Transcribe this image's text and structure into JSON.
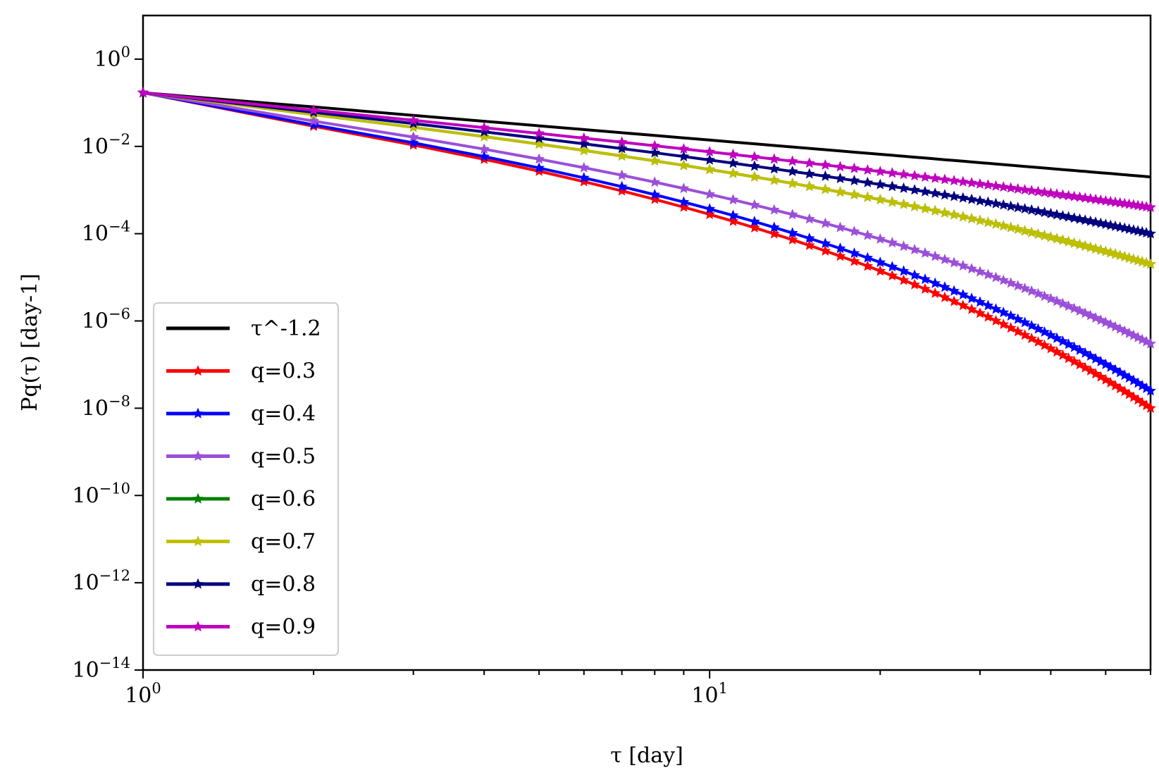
{
  "chart_data": {
    "type": "line",
    "title": "",
    "xlabel": "τ [day]",
    "ylabel": "Pq(τ) [day-1]",
    "xscale": "log",
    "yscale": "log",
    "xlim": [
      1,
      60
    ],
    "ylim": [
      1e-14,
      10
    ],
    "x_ticks": [
      {
        "value": 1,
        "base": "10",
        "exp": "0"
      },
      {
        "value": 10,
        "base": "10",
        "exp": "1"
      }
    ],
    "y_ticks": [
      {
        "value": 1,
        "base": "10",
        "exp": "0"
      },
      {
        "value": 0.01,
        "base": "10",
        "exp": "−2"
      },
      {
        "value": 0.0001,
        "base": "10",
        "exp": "−4"
      },
      {
        "value": 1e-06,
        "base": "10",
        "exp": "−6"
      },
      {
        "value": 1e-08,
        "base": "10",
        "exp": "−8"
      },
      {
        "value": 1e-10,
        "base": "10",
        "exp": "−10"
      },
      {
        "value": 1e-12,
        "base": "10",
        "exp": "−12"
      },
      {
        "value": 1e-14,
        "base": "10",
        "exp": "−14"
      }
    ],
    "x": [
      1,
      2,
      3,
      4,
      5,
      6,
      7,
      8,
      9,
      10,
      11,
      12,
      13,
      14,
      15,
      16,
      17,
      18,
      19,
      20,
      21,
      22,
      23,
      24,
      25,
      26,
      27,
      28,
      29,
      30,
      31,
      32,
      33,
      34,
      35,
      36,
      37,
      38,
      39,
      40,
      41,
      42,
      43,
      44,
      45,
      46,
      47,
      48,
      49,
      50,
      51,
      52,
      53,
      54,
      55,
      56,
      57,
      58,
      59,
      60
    ],
    "legend_position": "lower-left",
    "series": [
      {
        "name": "τ^-1.2",
        "color": "#000000",
        "marker": false,
        "tail_exponent": 0,
        "values_at_end": 0.002
      },
      {
        "name": "q=0.3",
        "color": "#ff0000",
        "marker": true,
        "tail_exponent": 2.1,
        "value_at_end": 1e-08
      },
      {
        "name": "q=0.4",
        "color": "#0000ff",
        "marker": true,
        "tail_exponent": 2.1,
        "value_at_end": 2.5e-08
      },
      {
        "name": "q=0.5",
        "color": "#9b4fd9",
        "marker": true,
        "tail_exponent": 2.1,
        "value_at_end": 3e-07
      },
      {
        "name": "q=0.6",
        "color": "#008000",
        "marker": true,
        "tail_exponent": 2.1,
        "value_at_end": 2e-05
      },
      {
        "name": "q=0.7",
        "color": "#bfbf00",
        "marker": true,
        "tail_exponent": 2.1,
        "value_at_end": 2e-05
      },
      {
        "name": "q=0.8",
        "color": "#00007f",
        "marker": true,
        "tail_exponent": 2.1,
        "value_at_end": 0.0001
      },
      {
        "name": "q=0.9",
        "color": "#bf00bf",
        "marker": true,
        "tail_exponent": 2.1,
        "value_at_end": 0.0004
      }
    ],
    "start_value": 0.17
  }
}
